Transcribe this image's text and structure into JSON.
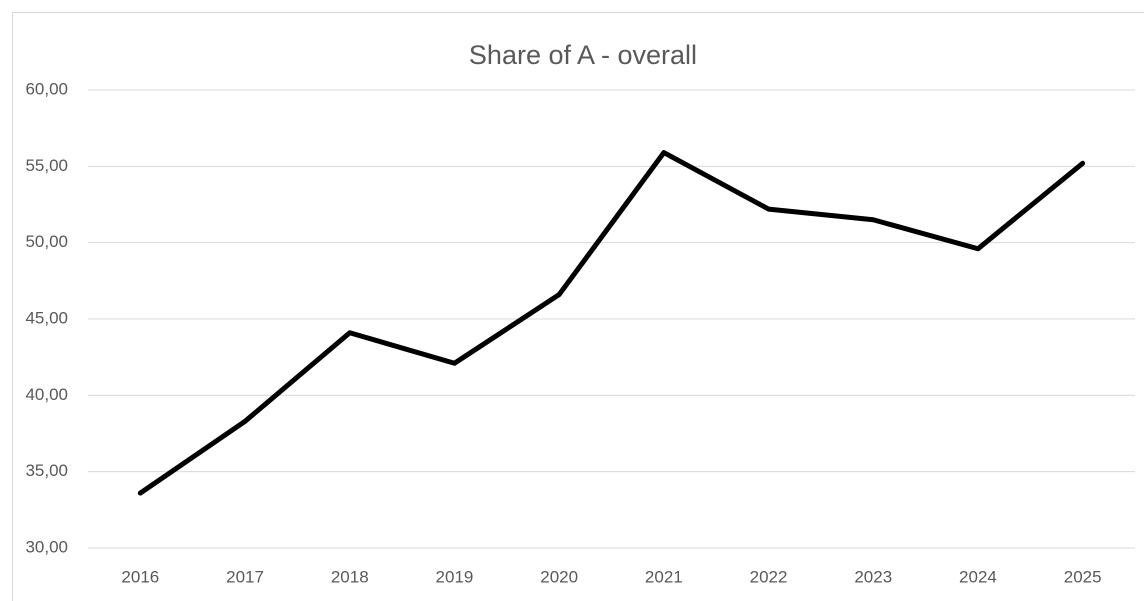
{
  "chart_data": {
    "type": "line",
    "title": "Share of A - overall",
    "categories": [
      "2016",
      "2017",
      "2018",
      "2019",
      "2020",
      "2021",
      "2022",
      "2023",
      "2024",
      "2025"
    ],
    "values": [
      33.6,
      38.3,
      44.1,
      42.1,
      46.6,
      55.9,
      52.2,
      51.5,
      49.6,
      55.2
    ],
    "color": "#000000",
    "ylim": [
      30,
      60
    ],
    "yticks": [
      {
        "value": 30,
        "label": "30,00"
      },
      {
        "value": 35,
        "label": "35,00"
      },
      {
        "value": 40,
        "label": "40,00"
      },
      {
        "value": 45,
        "label": "45,00"
      },
      {
        "value": 50,
        "label": "50,00"
      },
      {
        "value": 55,
        "label": "55,00"
      },
      {
        "value": 60,
        "label": "60,00"
      }
    ],
    "grid": true
  }
}
